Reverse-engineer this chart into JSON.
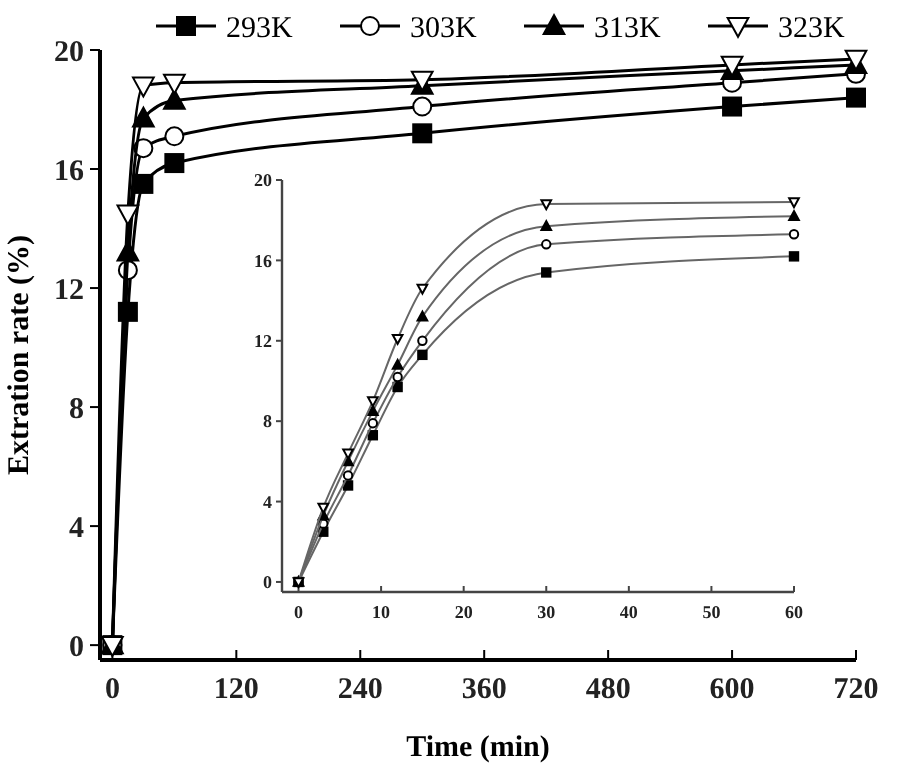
{
  "chart_data": [
    {
      "type": "line",
      "xlabel": "Time (min)",
      "ylabel": "Extration rate (%)",
      "x": [
        0,
        15,
        30,
        60,
        300,
        600,
        720
      ],
      "xlim": [
        -12,
        720
      ],
      "ylim": [
        -0.5,
        20
      ],
      "xticks": [
        0,
        120,
        240,
        360,
        480,
        600,
        720
      ],
      "yticks": [
        0,
        4,
        8,
        12,
        16,
        20
      ],
      "legend": "top",
      "grid": false,
      "series": [
        {
          "name": "293K",
          "color": "#000000",
          "marker": "square",
          "values": [
            0,
            11.2,
            15.5,
            16.2,
            17.2,
            18.1,
            18.4
          ]
        },
        {
          "name": "303K",
          "color": "#000000",
          "marker": "circle",
          "values": [
            0,
            12.6,
            16.7,
            17.1,
            18.1,
            18.9,
            19.2
          ]
        },
        {
          "name": "313K",
          "color": "#000000",
          "marker": "triangle",
          "values": [
            0,
            13.2,
            17.7,
            18.3,
            18.8,
            19.3,
            19.5
          ]
        },
        {
          "name": "323K",
          "color": "#000000",
          "marker": "triangle",
          "values": [
            0,
            14.5,
            18.8,
            18.9,
            19.0,
            19.5,
            19.7
          ]
        }
      ]
    },
    {
      "type": "line",
      "x": [
        0,
        3,
        6,
        9,
        12,
        15,
        30,
        60
      ],
      "xlim": [
        -2,
        60
      ],
      "ylim": [
        -0.5,
        20
      ],
      "xticks": [
        0,
        10,
        20,
        30,
        40,
        50,
        60
      ],
      "yticks": [
        0,
        4,
        8,
        12,
        16,
        20
      ],
      "grid": false,
      "series": [
        {
          "color": "#666666",
          "marker": "square",
          "values": [
            0,
            2.5,
            4.8,
            7.3,
            9.7,
            11.3,
            15.4,
            16.2
          ]
        },
        {
          "color": "#666666",
          "marker": "circle",
          "values": [
            0,
            2.9,
            5.3,
            7.9,
            10.2,
            12.0,
            16.8,
            17.3
          ]
        },
        {
          "color": "#666666",
          "marker": "triangle",
          "values": [
            0,
            3.3,
            6.0,
            8.5,
            10.8,
            13.2,
            17.7,
            18.2
          ]
        },
        {
          "color": "#666666",
          "marker": "triangle",
          "values": [
            0,
            3.7,
            6.4,
            9.0,
            12.1,
            14.6,
            18.8,
            18.9
          ]
        }
      ]
    }
  ]
}
